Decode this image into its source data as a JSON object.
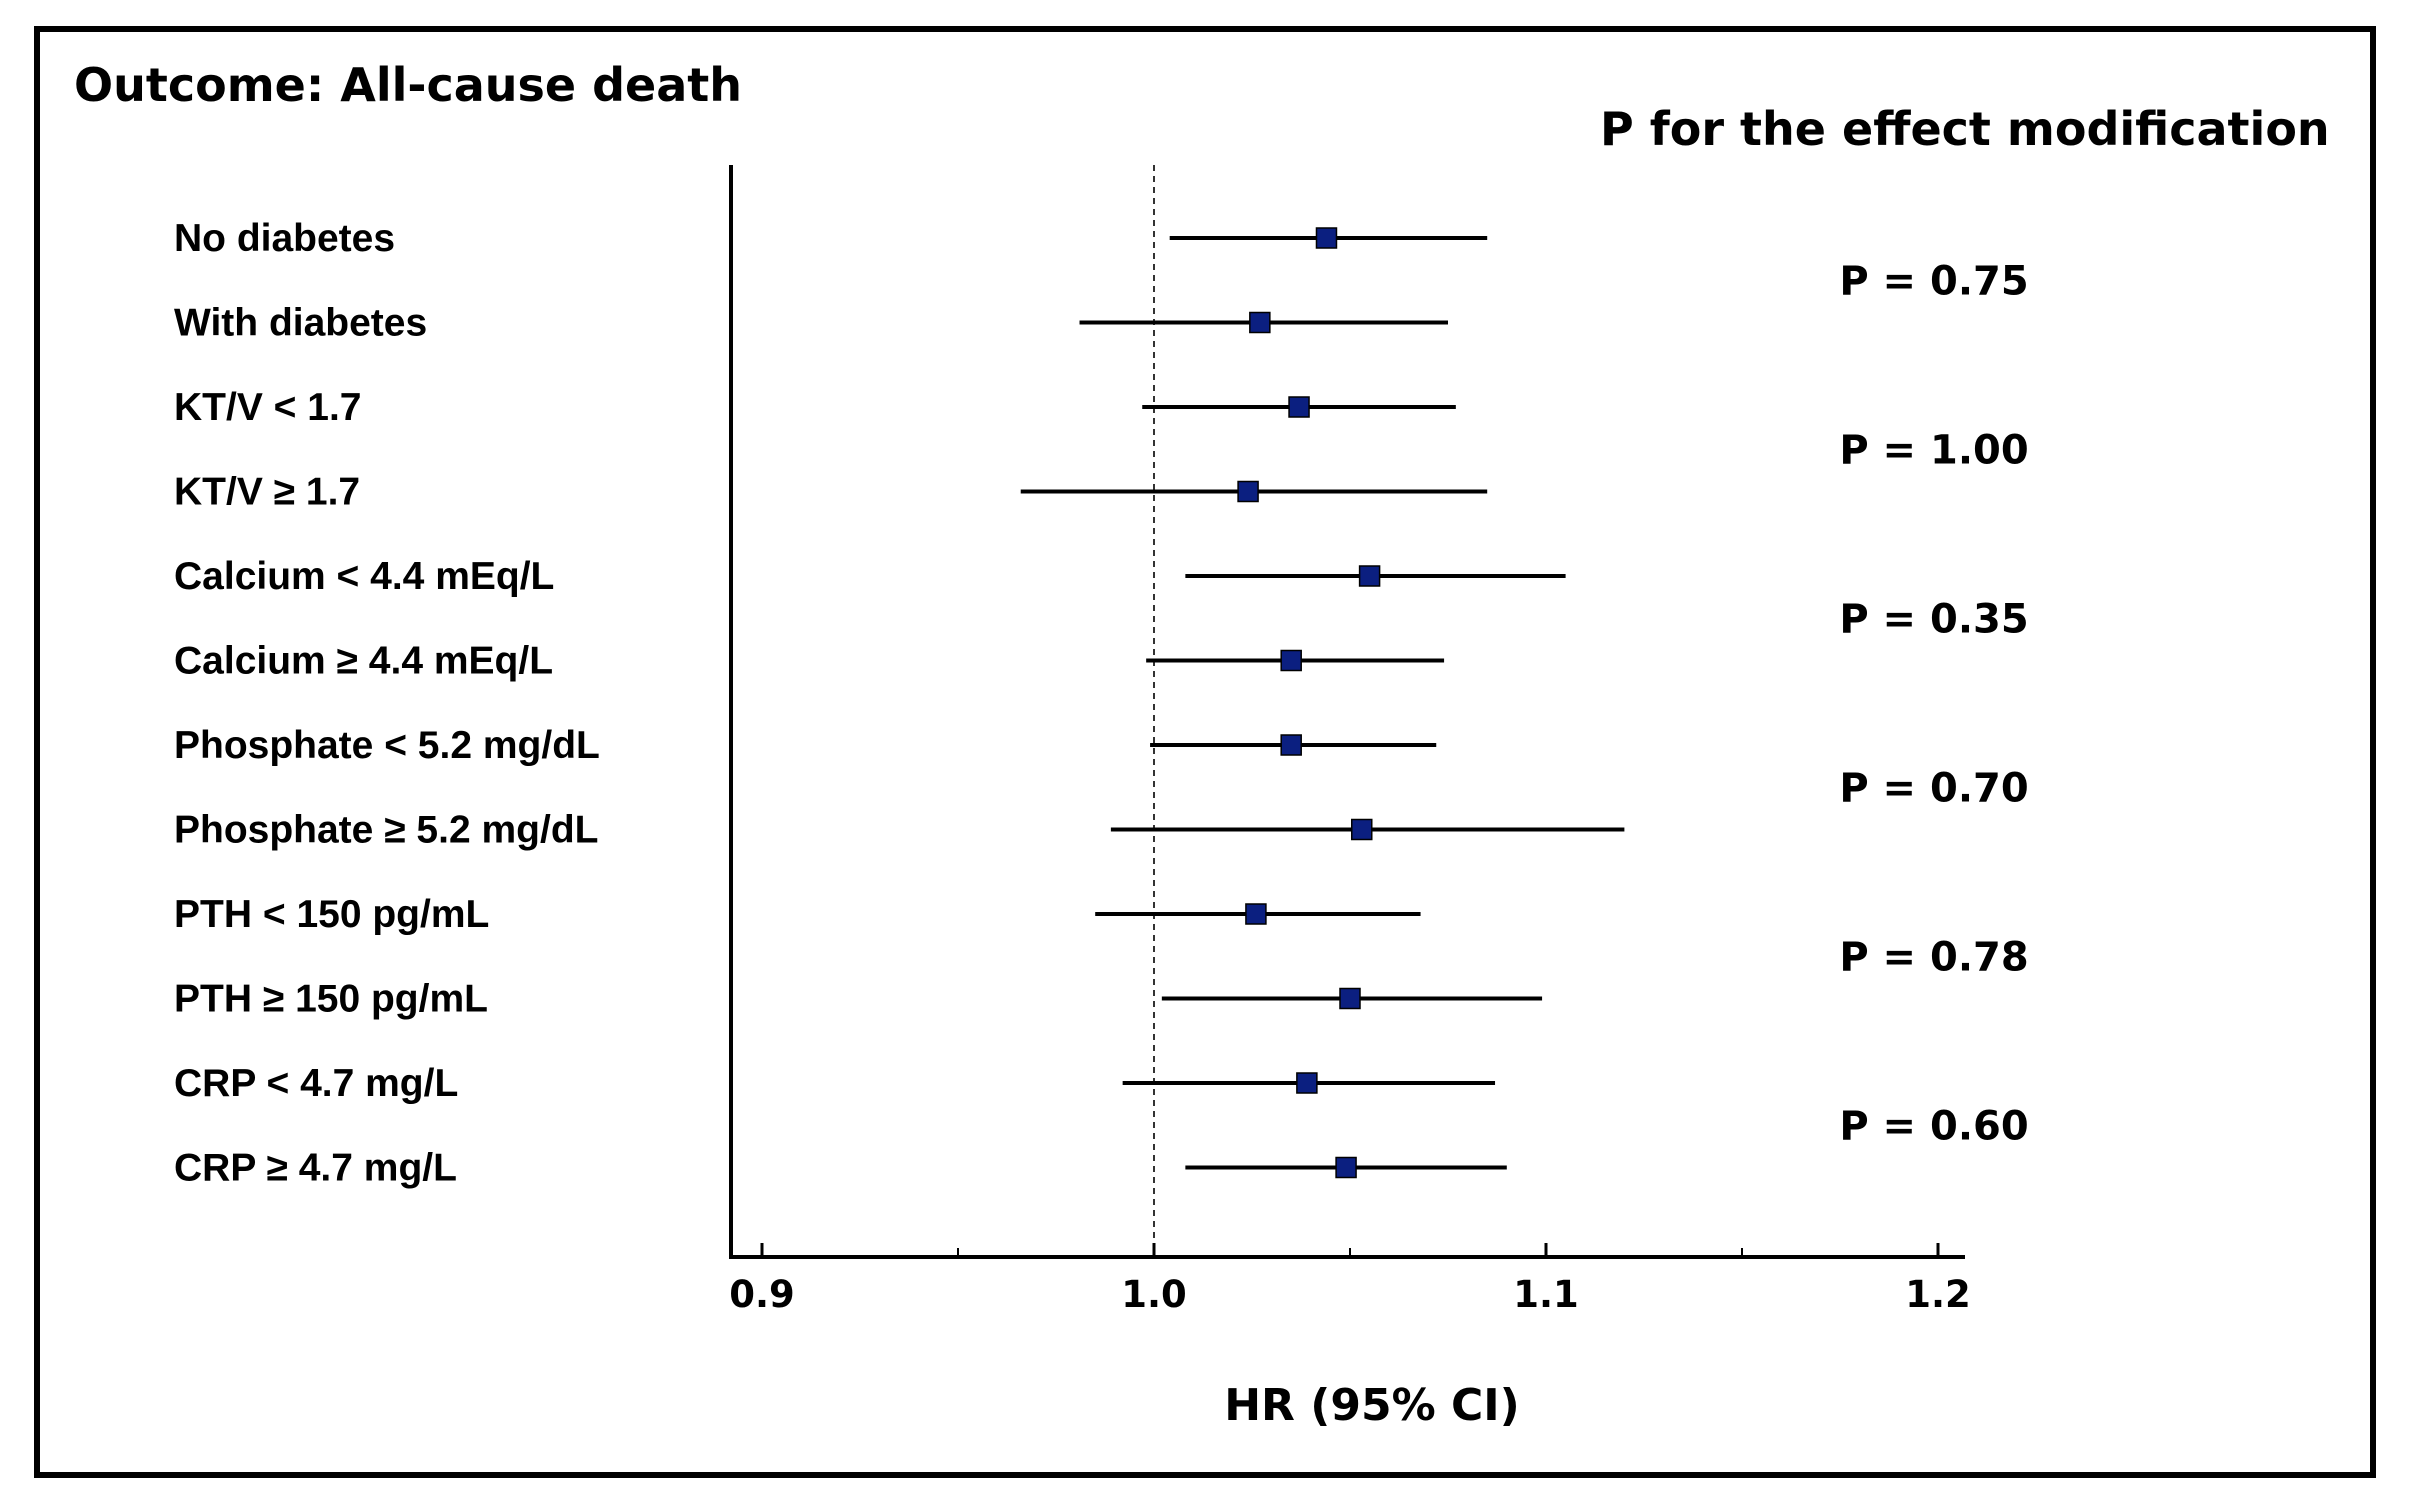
{
  "chart_data": {
    "type": "forest",
    "title": "Outcome: All-cause death",
    "p_header": "P for the effect modification",
    "xlabel": "HR (95% CI)",
    "xlim": [
      0.9,
      1.2
    ],
    "reference_line": 1.0,
    "x_ticks_major": [
      0.9,
      1.0,
      1.1,
      1.2
    ],
    "x_tick_labels": [
      "0.9",
      "1.0",
      "1.1",
      "1.2"
    ],
    "x_ticks_minor": [
      0.95,
      1.05,
      1.15
    ],
    "marker_color": "#0b1f80",
    "rows": [
      {
        "label": "No diabetes",
        "hr": 1.044,
        "lower": 1.004,
        "upper": 1.085
      },
      {
        "label": "With diabetes",
        "hr": 1.027,
        "lower": 0.981,
        "upper": 1.075
      },
      {
        "label": "KT/V < 1.7",
        "hr": 1.037,
        "lower": 0.997,
        "upper": 1.077
      },
      {
        "label": "KT/V ≥ 1.7",
        "hr": 1.024,
        "lower": 0.966,
        "upper": 1.085
      },
      {
        "label": "Calcium < 4.4 mEq/L",
        "hr": 1.055,
        "lower": 1.008,
        "upper": 1.105
      },
      {
        "label": "Calcium ≥ 4.4 mEq/L",
        "hr": 1.035,
        "lower": 0.998,
        "upper": 1.074
      },
      {
        "label": "Phosphate < 5.2 mg/dL",
        "hr": 1.035,
        "lower": 0.999,
        "upper": 1.072
      },
      {
        "label": "Phosphate ≥ 5.2 mg/dL",
        "hr": 1.053,
        "lower": 0.989,
        "upper": 1.12
      },
      {
        "label": "PTH < 150 pg/mL",
        "hr": 1.026,
        "lower": 0.985,
        "upper": 1.068
      },
      {
        "label": "PTH ≥ 150 pg/mL",
        "hr": 1.05,
        "lower": 1.002,
        "upper": 1.099
      },
      {
        "label": "CRP < 4.7 mg/L",
        "hr": 1.039,
        "lower": 0.992,
        "upper": 1.087
      },
      {
        "label": "CRP ≥ 4.7 mg/L",
        "hr": 1.049,
        "lower": 1.008,
        "upper": 1.09
      }
    ],
    "p_values": [
      {
        "text": "P = 0.75",
        "rows": [
          0,
          1
        ]
      },
      {
        "text": "P = 1.00",
        "rows": [
          2,
          3
        ]
      },
      {
        "text": "P = 0.35",
        "rows": [
          4,
          5
        ]
      },
      {
        "text": "P = 0.70",
        "rows": [
          6,
          7
        ]
      },
      {
        "text": "P = 0.78",
        "rows": [
          8,
          9
        ]
      },
      {
        "text": "P = 0.60",
        "rows": [
          10,
          11
        ]
      }
    ]
  }
}
